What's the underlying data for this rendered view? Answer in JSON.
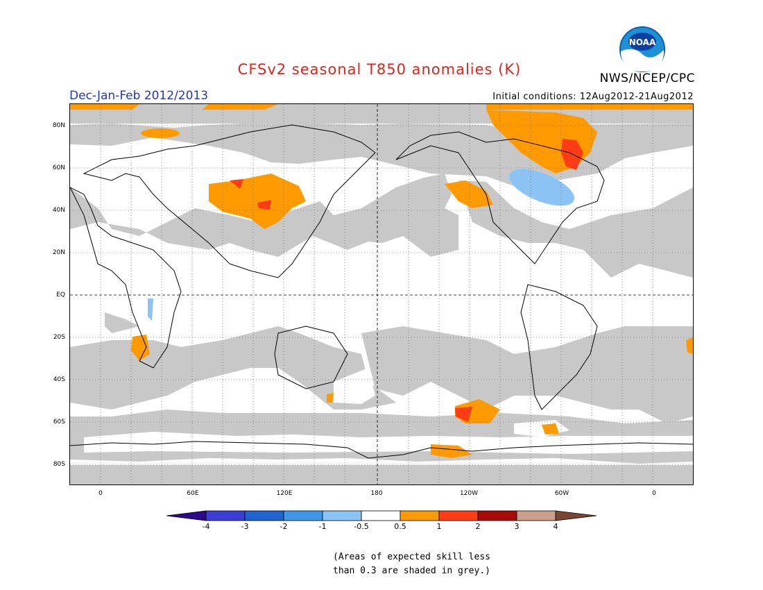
{
  "title": "CFSv2 seasonal T850 anomalies (K)",
  "agency": "NWS/NCEP/CPC",
  "logo_text": "NOAA",
  "period": "Dec-Jan-Feb 2012/2013",
  "initial_conditions": "Initial conditions: 12Aug2012-21Aug2012",
  "lat_labels": [
    "80N",
    "60N",
    "40N",
    "20N",
    "EQ",
    "20S",
    "40S",
    "60S",
    "80S"
  ],
  "lon_labels": [
    "0",
    "60E",
    "120E",
    "180",
    "120W",
    "60W",
    "0"
  ],
  "colorbar": {
    "labels": [
      "-4",
      "-3",
      "-2",
      "-1",
      "-0.5",
      "0.5",
      "1",
      "2",
      "3",
      "4"
    ],
    "colors": [
      "#2b0a8c",
      "#3c3cd6",
      "#1e64d2",
      "#3f97ec",
      "#8cc3f5",
      "#ffffff",
      "#ff9b00",
      "#ff3c14",
      "#aa0a0a",
      "#c9a08c",
      "#7a4632"
    ]
  },
  "note_line1": "(Areas of expected skill less",
  "note_line2": "than 0.3 are shaded in grey.)",
  "colors": {
    "skill_grey": "#c8c8c8",
    "orange": "#ff9b00",
    "red": "#ff3c14",
    "blue": "#8cc3f5",
    "title_red": "#e0241b",
    "period_blue": "#2233cc"
  }
}
